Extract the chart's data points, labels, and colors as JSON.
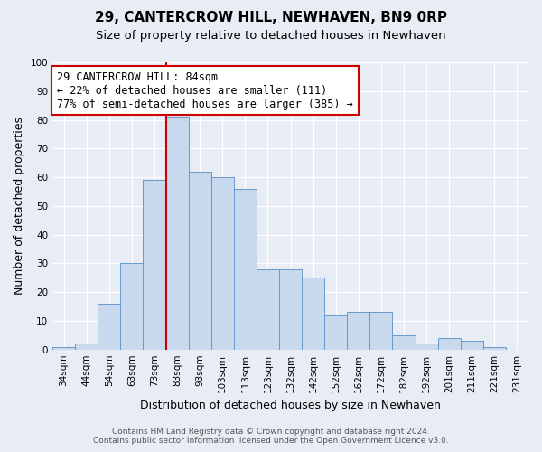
{
  "title": "29, CANTERCROW HILL, NEWHAVEN, BN9 0RP",
  "subtitle": "Size of property relative to detached houses in Newhaven",
  "xlabel": "Distribution of detached houses by size in Newhaven",
  "ylabel": "Number of detached properties",
  "footnote1": "Contains HM Land Registry data © Crown copyright and database right 2024.",
  "footnote2": "Contains public sector information licensed under the Open Government Licence v3.0.",
  "categories": [
    "34sqm",
    "44sqm",
    "54sqm",
    "63sqm",
    "73sqm",
    "83sqm",
    "93sqm",
    "103sqm",
    "113sqm",
    "123sqm",
    "132sqm",
    "142sqm",
    "152sqm",
    "162sqm",
    "172sqm",
    "182sqm",
    "192sqm",
    "201sqm",
    "211sqm",
    "221sqm",
    "231sqm"
  ],
  "values": [
    1,
    2,
    16,
    30,
    59,
    81,
    62,
    60,
    56,
    28,
    28,
    25,
    12,
    13,
    13,
    5,
    2,
    4,
    3,
    1,
    0
  ],
  "bar_color": "#c8d9ee",
  "bar_edge_color": "#6699cc",
  "highlight_bar_index": 5,
  "vline_color": "#cc0000",
  "annotation_text": "29 CANTERCROW HILL: 84sqm\n← 22% of detached houses are smaller (111)\n77% of semi-detached houses are larger (385) →",
  "annotation_box_color": "#cc0000",
  "ylim": [
    0,
    100
  ],
  "yticks": [
    0,
    10,
    20,
    30,
    40,
    50,
    60,
    70,
    80,
    90,
    100
  ],
  "background_color": "#e8edf5",
  "plot_bg_color": "#e8edf5",
  "grid_color": "#ffffff",
  "title_fontsize": 11,
  "subtitle_fontsize": 9.5,
  "ylabel_fontsize": 9,
  "xlabel_fontsize": 9,
  "tick_fontsize": 7.5,
  "annotation_fontsize": 8.5,
  "footnote_fontsize": 6.5
}
